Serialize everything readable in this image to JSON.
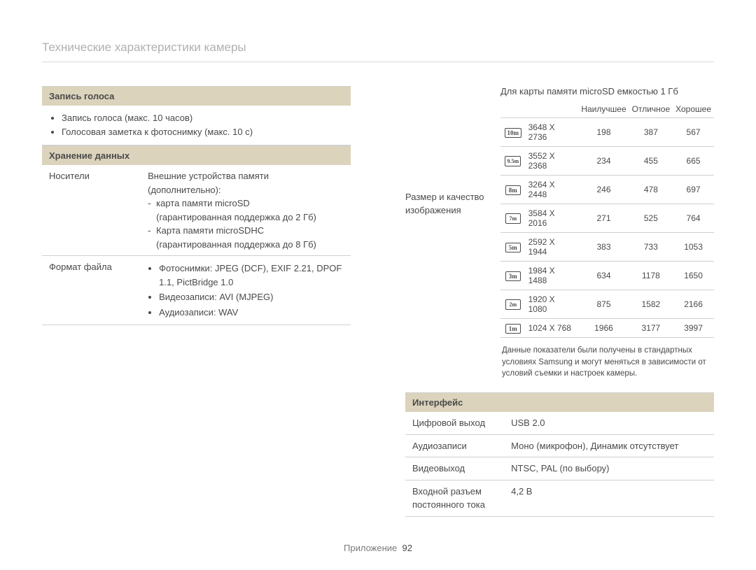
{
  "colors": {
    "background": "#ffffff",
    "section_header_bg": "#dcd3bc",
    "border": "#d0d0d0",
    "title": "#b0b0b0",
    "text": "#4a4a4a"
  },
  "pageTitle": "Технические характеристики камеры",
  "footer": {
    "label": "Приложение",
    "page": "92"
  },
  "left": {
    "voice": {
      "header": "Запись голоса",
      "items": [
        "Запись голоса (макс. 10 часов)",
        "Голосовая заметка к фотоснимку (макс. 10 с)"
      ]
    },
    "storage": {
      "header": "Хранение данных",
      "rows": {
        "media": {
          "key": "Носители",
          "intro": "Внешние устройства памяти (дополнительно):",
          "lines": [
            "карта памяти microSD",
            "(гарантированная поддержка до 2 Гб)",
            "Карта памяти microSDHC",
            "(гарантированная поддержка до 8 Гб)"
          ]
        },
        "format": {
          "key": "Формат файла",
          "items": [
            "Фотоснимки: JPEG (DCF), EXIF 2.21, DPOF 1.1, PictBridge 1.0",
            "Видеозаписи: AVI (MJPEG)",
            "Аудиозаписи: WAV"
          ]
        }
      }
    }
  },
  "right": {
    "sizeLabel": "Размер и качество изображения",
    "capacity": "Для карты памяти microSD емкостью 1 Гб",
    "columns": [
      "Наилучшее",
      "Отличное",
      "Хорошее"
    ],
    "rows": [
      {
        "icon": "10m",
        "res": "3648 X 2736",
        "vals": [
          "198",
          "387",
          "567"
        ]
      },
      {
        "icon": "9.5m",
        "sub": true,
        "res": "3552 X 2368",
        "vals": [
          "234",
          "455",
          "665"
        ]
      },
      {
        "icon": "8m",
        "res": "3264 X 2448",
        "vals": [
          "246",
          "478",
          "697"
        ]
      },
      {
        "icon": "7m",
        "sub": true,
        "res": "3584 X 2016",
        "vals": [
          "271",
          "525",
          "764"
        ]
      },
      {
        "icon": "5m",
        "res": "2592 X 1944",
        "vals": [
          "383",
          "733",
          "1053"
        ]
      },
      {
        "icon": "3m",
        "res": "1984 X 1488",
        "vals": [
          "634",
          "1178",
          "1650"
        ]
      },
      {
        "icon": "2m",
        "sub": true,
        "res": "1920 X 1080",
        "vals": [
          "875",
          "1582",
          "2166"
        ]
      },
      {
        "icon": "1m",
        "res": "1024 X 768",
        "vals": [
          "1966",
          "3177",
          "3997"
        ]
      }
    ],
    "note": "Данные показатели были получены в стандартных условиях Samsung и могут меняться в зависимости от условий съемки и настроек камеры.",
    "interface": {
      "header": "Интерфейс",
      "rows": [
        {
          "key": "Цифровой выход",
          "val": "USB 2.0"
        },
        {
          "key": "Аудиозаписи",
          "val": "Моно (микрофон), Динамик отсутствует"
        },
        {
          "key": "Видеовыход",
          "val": "NTSC, PAL (по выбору)"
        },
        {
          "key": "Входной разъем постоянного тока",
          "val": "4,2 В"
        }
      ]
    }
  }
}
